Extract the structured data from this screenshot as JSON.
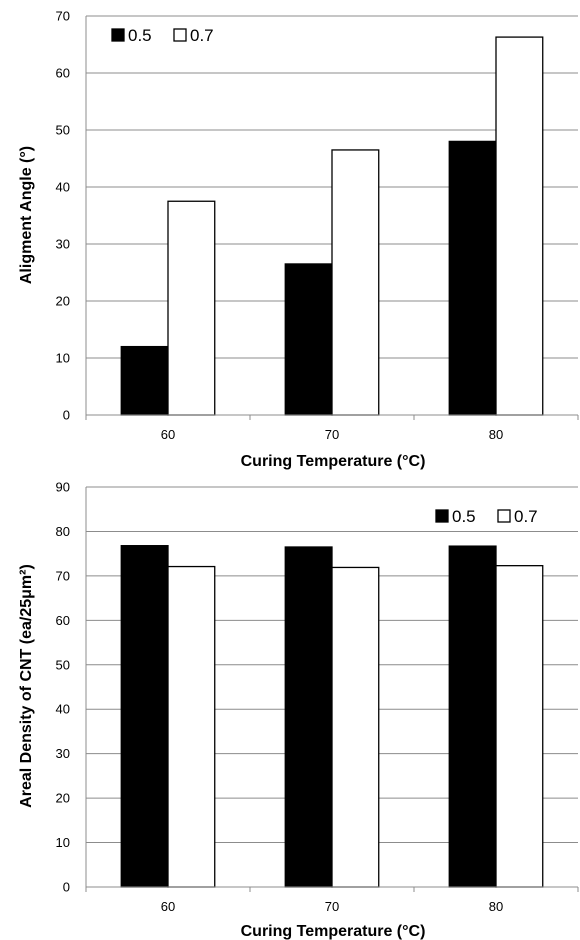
{
  "chart_data": [
    {
      "type": "bar",
      "categories": [
        "60",
        "70",
        "80"
      ],
      "series": [
        {
          "name": "0.5",
          "values": [
            12,
            26.5,
            48
          ],
          "fill": "#000000"
        },
        {
          "name": "0.7",
          "values": [
            37.5,
            46.5,
            66.3
          ],
          "fill": "#ffffff"
        }
      ],
      "xlabel": "Curing Temperature (°C)",
      "ylabel": "Aligment Angle (°)",
      "ylim": [
        0,
        70
      ],
      "yticks": [
        "0",
        "10",
        "20",
        "30",
        "40",
        "50",
        "60",
        "70"
      ],
      "grid": true,
      "legend_position": "top-left"
    },
    {
      "type": "bar",
      "categories": [
        "60",
        "70",
        "80"
      ],
      "series": [
        {
          "name": "0.5",
          "values": [
            76.8,
            76.5,
            76.7
          ],
          "fill": "#000000"
        },
        {
          "name": "0.7",
          "values": [
            72.1,
            71.9,
            72.3
          ],
          "fill": "#ffffff"
        }
      ],
      "xlabel": "Curing Temperature (°C)",
      "ylabel": "Areal Density of CNT  (ea/25μm²)",
      "ylim": [
        0,
        90
      ],
      "yticks": [
        "0",
        "10",
        "20",
        "30",
        "40",
        "50",
        "60",
        "70",
        "80",
        "90"
      ],
      "grid": true,
      "legend_position": "top-right"
    }
  ],
  "colors": {
    "grid": "#8c8c8c",
    "axis": "#8c8c8c",
    "bar_stroke": "#000000"
  }
}
